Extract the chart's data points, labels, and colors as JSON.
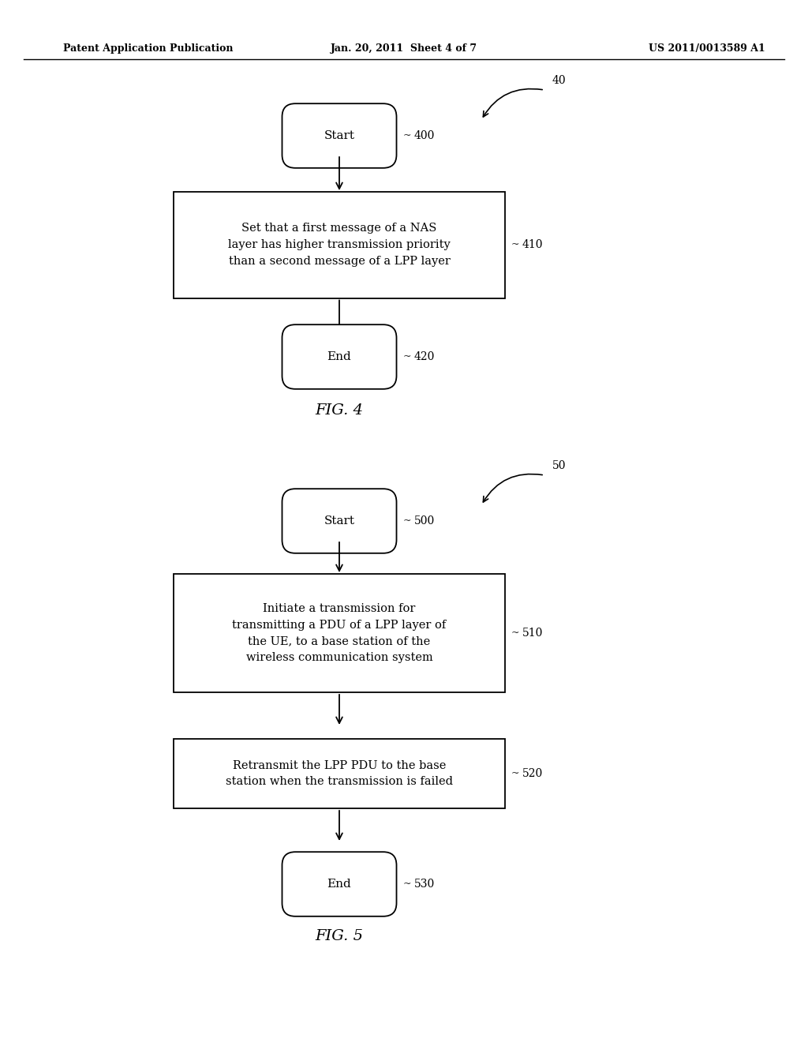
{
  "bg_color": "#ffffff",
  "text_color": "#000000",
  "header_left": "Patent Application Publication",
  "header_center": "Jan. 20, 2011  Sheet 4 of 7",
  "header_right": "US 2011/0013589 A1",
  "fig4": {
    "diagram_label": "40",
    "fig_caption": "FIG. 4",
    "start_label": "Start",
    "start_ref": "400",
    "box410_text": "Set that a first message of a NAS\nlayer has higher transmission priority\nthan a second message of a LPP layer",
    "box410_ref": "410",
    "end_label": "End",
    "end_ref": "420"
  },
  "fig5": {
    "diagram_label": "50",
    "fig_caption": "FIG. 5",
    "start_label": "Start",
    "start_ref": "500",
    "box510_text": "Initiate a transmission for\ntransmitting a PDU of a LPP layer of\nthe UE, to a base station of the\nwireless communication system",
    "box510_ref": "510",
    "box520_text": "Retransmit the LPP PDU to the base\nstation when the transmission is failed",
    "box520_ref": "520",
    "end_label": "End",
    "end_ref": "530"
  }
}
